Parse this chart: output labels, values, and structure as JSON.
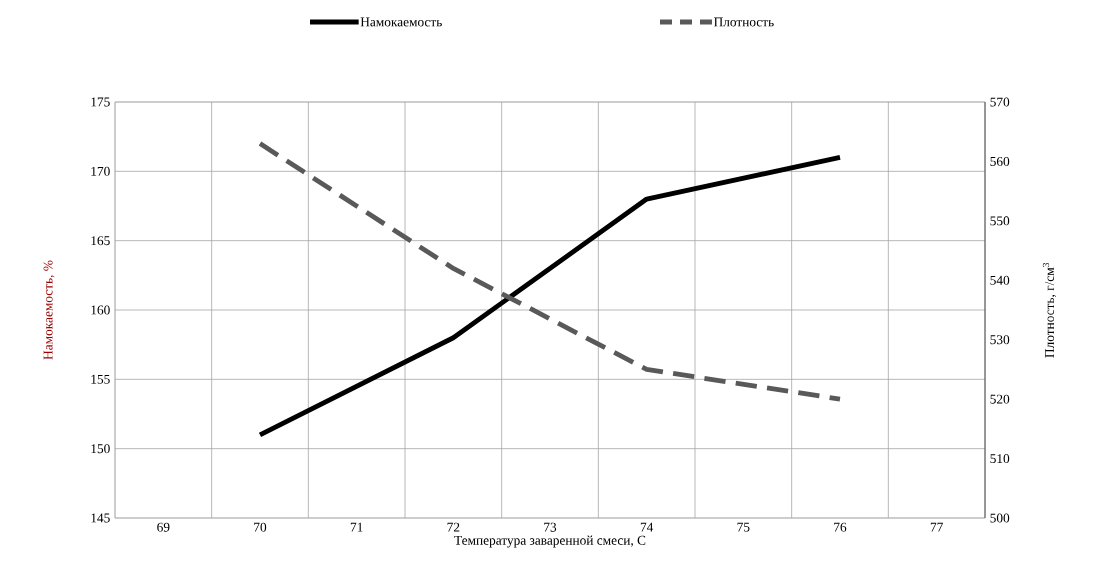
{
  "chart_data": {
    "type": "line",
    "xlabel": "Температура заваренной  смеси, С",
    "ylabel": "Намокаемость, %",
    "y2label": "Плотность, г/см$^{3}$",
    "categories": [
      "69",
      "70",
      "71",
      "72",
      "73",
      "74",
      "75",
      "76",
      "77"
    ],
    "series": [
      {
        "name": "Намокаемость",
        "color": "#000000",
        "line_style": "solid",
        "values": [
          null,
          151,
          null,
          158,
          null,
          168,
          null,
          171,
          null
        ]
      },
      {
        "name": "Плотность",
        "color": "#595959",
        "line_style": "dashed",
        "axis": "y2",
        "values": [
          null,
          563,
          null,
          542,
          null,
          525,
          null,
          520,
          null
        ]
      }
    ],
    "ylim": [
      145,
      175
    ],
    "yticks": [
      145,
      150,
      155,
      160,
      165,
      170,
      175
    ],
    "y2lim": [
      500,
      570
    ],
    "y2ticks": [
      500,
      510,
      520,
      530,
      540,
      550,
      560,
      570
    ],
    "grid": true,
    "legend": "top",
    "marker": "none"
  }
}
